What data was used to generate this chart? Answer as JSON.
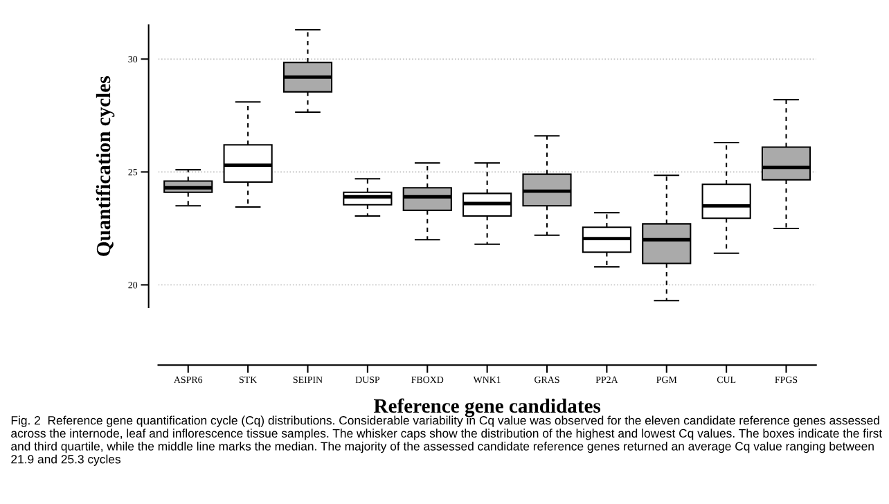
{
  "chart_data": {
    "type": "box",
    "xlabel": "Reference gene candidates",
    "ylabel": "Quantification cycles",
    "categories": [
      "ASPR6",
      "STK",
      "SEIPIN",
      "DUSP",
      "FBOXD",
      "WNK1",
      "GRAS",
      "PP2A",
      "PGM",
      "CUL",
      "FPGS"
    ],
    "boxes": [
      {
        "low": 23.5,
        "q1": 24.1,
        "median": 24.3,
        "q3": 24.6,
        "high": 25.1
      },
      {
        "low": 23.45,
        "q1": 24.55,
        "median": 25.3,
        "q3": 26.2,
        "high": 28.1
      },
      {
        "low": 27.65,
        "q1": 28.55,
        "median": 29.2,
        "q3": 29.85,
        "high": 31.3
      },
      {
        "low": 23.05,
        "q1": 23.55,
        "median": 23.9,
        "q3": 24.1,
        "high": 24.7
      },
      {
        "low": 22.0,
        "q1": 23.3,
        "median": 23.9,
        "q3": 24.3,
        "high": 25.4
      },
      {
        "low": 21.8,
        "q1": 23.05,
        "median": 23.6,
        "q3": 24.05,
        "high": 25.4
      },
      {
        "low": 22.2,
        "q1": 23.5,
        "median": 24.15,
        "q3": 24.9,
        "high": 26.6
      },
      {
        "low": 20.8,
        "q1": 21.45,
        "median": 22.05,
        "q3": 22.55,
        "high": 23.2
      },
      {
        "low": 19.3,
        "q1": 20.95,
        "median": 22.0,
        "q3": 22.7,
        "high": 24.85
      },
      {
        "low": 21.4,
        "q1": 22.95,
        "median": 23.5,
        "q3": 24.45,
        "high": 26.3
      },
      {
        "low": 22.5,
        "q1": 24.65,
        "median": 25.2,
        "q3": 26.1,
        "high": 28.2
      }
    ],
    "colors": [
      "#aaaaaa",
      "#ffffff",
      "#aaaaaa",
      "#ffffff",
      "#aaaaaa",
      "#ffffff",
      "#aaaaaa",
      "#ffffff",
      "#aaaaaa",
      "#ffffff",
      "#aaaaaa"
    ],
    "ylim": [
      19,
      31.5
    ],
    "yticks": [
      20,
      25,
      30
    ],
    "grid": "y",
    "line_style": "dashed",
    "annotations": [
      "Fig. 2  Reference gene quantification cycle (Cq) distributions. Considerable variability in Cq value was observed for the eleven candidate reference genes assessed across the internode, leaf and inflorescence tissue samples. The whisker caps show the distribution of the highest and lowest Cq values. The boxes indicate the first and third quartile, while the middle line marks the median. The majority of the assessed candidate reference genes returned an average Cq value ranging between 21.9 and 25.3 cycles"
    ]
  }
}
